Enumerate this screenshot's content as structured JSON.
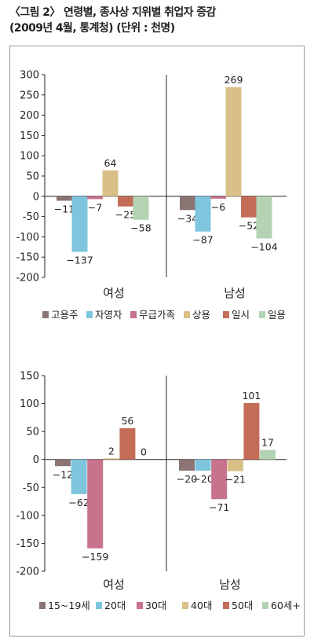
{
  "figure": {
    "title_line1": "〈그림 2〉 연령별, 종사상 지위별 취업자 증감",
    "title_line2": "(2009년 4월, 통계청) (단위 : 천명)"
  },
  "chart_data": [
    {
      "type": "bar",
      "groups": [
        "여성",
        "남성"
      ],
      "series": [
        {
          "name": "고용주",
          "color": "#8b7474",
          "values": [
            -11,
            -34
          ]
        },
        {
          "name": "자영자",
          "color": "#7ec5de",
          "values": [
            -137,
            -87
          ]
        },
        {
          "name": "무급가족",
          "color": "#c7738c",
          "values": [
            -7,
            -6
          ]
        },
        {
          "name": "상용",
          "color": "#d8c088",
          "values": [
            64,
            269
          ]
        },
        {
          "name": "일시",
          "color": "#c36d57",
          "values": [
            -25,
            -52
          ]
        },
        {
          "name": "일용",
          "color": "#b3d3b2",
          "values": [
            -58,
            -104
          ]
        }
      ],
      "value_labels": [
        [
          "−11",
          "−137",
          "−7",
          "64",
          "−25",
          "−58"
        ],
        [
          "−34",
          "−87",
          "−6",
          "269",
          "−52",
          "−104"
        ]
      ],
      "yticks": [
        "300",
        "250",
        "200",
        "150",
        "100",
        "50",
        "0",
        "-50",
        "-100",
        "-150",
        "-200"
      ],
      "ylim": [
        -200,
        300
      ],
      "grid": false,
      "legend_position": "bottom"
    },
    {
      "type": "bar",
      "groups": [
        "여성",
        "남성"
      ],
      "series": [
        {
          "name": "15~19세",
          "color": "#8b7474",
          "values": [
            -12,
            -20
          ]
        },
        {
          "name": "20대",
          "color": "#7ec5de",
          "values": [
            -62,
            -20
          ]
        },
        {
          "name": "30대",
          "color": "#c7738c",
          "values": [
            -159,
            -71
          ]
        },
        {
          "name": "40대",
          "color": "#d8c088",
          "values": [
            2,
            -21
          ]
        },
        {
          "name": "50대",
          "color": "#c36d57",
          "values": [
            56,
            101
          ]
        },
        {
          "name": "60세+",
          "color": "#b3d3b2",
          "values": [
            0,
            17
          ]
        }
      ],
      "value_labels": [
        [
          "−12",
          "−62",
          "−159",
          "2",
          "56",
          "0"
        ],
        [
          "−20",
          "−20",
          "−71",
          "−21",
          "101",
          "17"
        ]
      ],
      "yticks": [
        "150",
        "100",
        "50",
        "0",
        "-50",
        "-100",
        "-150",
        "-200"
      ],
      "ylim": [
        -200,
        150
      ],
      "grid": false,
      "legend_position": "bottom"
    }
  ]
}
